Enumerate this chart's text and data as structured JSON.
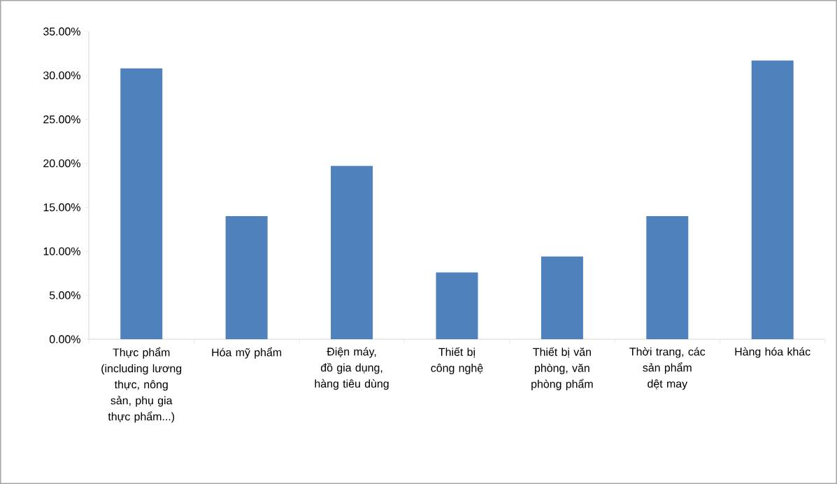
{
  "chart_data": {
    "type": "bar",
    "categories": [
      "Thực phẩm (including lương thực, nông sản, phụ gia thực phẩm...)",
      "Hóa mỹ phẩm",
      "Điện máy, đồ gia dụng, hàng tiêu dùng",
      "Thiết bị công nghệ",
      "Thiết bị văn phòng, văn phòng phẩm",
      "Thời trang, các sản phẩm dệt may",
      "Hàng hóa khác"
    ],
    "values": [
      30.8,
      14.0,
      19.7,
      7.6,
      9.4,
      14.0,
      31.7
    ],
    "color": "#4f81bd",
    "ylim": [
      0,
      35
    ],
    "yticks": [
      {
        "value": 0,
        "label": "0.00%"
      },
      {
        "value": 5,
        "label": "5.00%"
      },
      {
        "value": 10,
        "label": "10.00%"
      },
      {
        "value": 15,
        "label": "15.00%"
      },
      {
        "value": 20,
        "label": "20.00%"
      },
      {
        "value": 25,
        "label": "25.00%"
      },
      {
        "value": 30,
        "label": "30.00%"
      },
      {
        "value": 35,
        "label": "35.00%"
      }
    ],
    "grid": false
  }
}
